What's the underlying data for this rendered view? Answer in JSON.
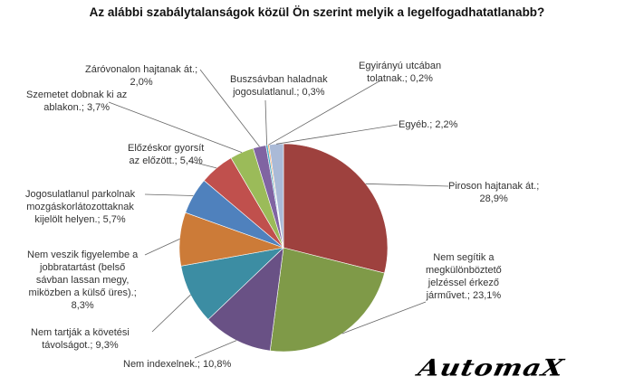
{
  "chart_data": {
    "type": "pie",
    "title": "Az alábbi szabálytalanságok közül Ön szerint melyik a legelfogadhatatlanabb?",
    "start_angle_deg": 0,
    "direction": "clockwise",
    "slices": [
      {
        "label": "Piroson hajtanak át.",
        "value": 28.9,
        "display": "28,9%",
        "color": "#9e413e"
      },
      {
        "label": "Nem segítik a megkülönböztető jelzéssel érkező járművet.",
        "value": 23.1,
        "display": "23,1%",
        "color": "#7f9a48"
      },
      {
        "label": "Nem indexelnek.",
        "value": 10.8,
        "display": "10,8%",
        "color": "#695185"
      },
      {
        "label": "Nem tartják a követési távolságot.",
        "value": 9.3,
        "display": "9,3%",
        "color": "#3c8da3"
      },
      {
        "label": "Nem veszik figyelembe a jobbratartást (belső sávban lassan megy, miközben a külső üres).",
        "value": 8.3,
        "display": "8,3%",
        "color": "#cc7b38"
      },
      {
        "label": "Jogosulatlanul parkolnak mozgáskorlátozottaknak kijelölt helyen.",
        "value": 5.7,
        "display": "5,7%",
        "color": "#4f81bd"
      },
      {
        "label": "Előzéskor gyorsít az előzött.",
        "value": 5.4,
        "display": "5,4%",
        "color": "#c0504d"
      },
      {
        "label": "Szemetet dobnak ki az ablakon.",
        "value": 3.7,
        "display": "3,7%",
        "color": "#9bbb59"
      },
      {
        "label": "Záróvonalon hajtanak át.",
        "value": 2.0,
        "display": "2,0%",
        "color": "#8064a2"
      },
      {
        "label": "Buszsávban haladnak jogosulatlanul.",
        "value": 0.3,
        "display": "0,3%",
        "color": "#4bacc6"
      },
      {
        "label": "Egyirányú utcában tolatnak.",
        "value": 0.2,
        "display": "0,2%",
        "color": "#f79646"
      },
      {
        "label": "Egyéb.",
        "value": 2.2,
        "display": "2,2%",
        "color": "#aabad7"
      }
    ],
    "legend": "none (data labels with leader lines)",
    "label_separator": "; "
  },
  "labels": [
    {
      "lines": [
        "Piroson hajtanak át.;",
        "28,9%"
      ]
    },
    {
      "lines": [
        "Nem segítik a",
        "megkülönböztető",
        "jelzéssel érkező",
        "járművet.; 23,1%"
      ]
    },
    {
      "lines": [
        "Nem indexelnek.; 10,8%"
      ]
    },
    {
      "lines": [
        "Nem tartják a követési",
        "távolságot.; 9,3%"
      ]
    },
    {
      "lines": [
        "Nem veszik figyelembe a",
        "jobbratartást (belső",
        "sávban lassan megy,",
        "miközben a külső üres).;",
        "8,3%"
      ]
    },
    {
      "lines": [
        "Jogosulatlanul parkolnak",
        "mozgáskorlátozottaknak",
        "kijelölt helyen.; 5,7%"
      ]
    },
    {
      "lines": [
        "Előzéskor gyorsít",
        "az előzött.; 5,4%"
      ]
    },
    {
      "lines": [
        "Szemetet dobnak ki az",
        "ablakon.; 3,7%"
      ]
    },
    {
      "lines": [
        "Záróvonalon hajtanak át.;",
        "2,0%"
      ]
    },
    {
      "lines": [
        "Buszsávban haladnak",
        "jogosulatlanul.; 0,3%"
      ]
    },
    {
      "lines": [
        "Egyirányú utcában",
        "tolatnak.; 0,2%"
      ]
    },
    {
      "lines": [
        "Egyéb.; 2,2%"
      ]
    }
  ],
  "logo": {
    "text": "AutomaX"
  }
}
